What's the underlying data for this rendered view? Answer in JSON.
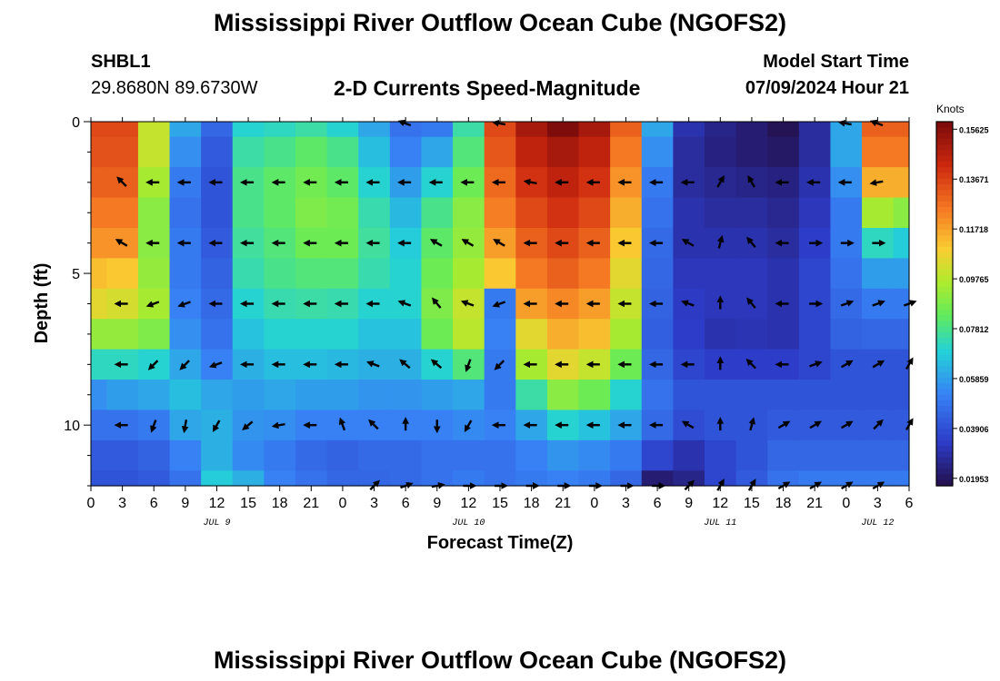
{
  "header": {
    "title": "Mississippi River Outflow Ocean Cube (NGOFS2)",
    "station_id": "SHBL1",
    "coordinates": "29.8680N  89.6730W",
    "subtitle": "2-D Currents Speed-Magnitude",
    "model_start_label": "Model Start Time",
    "model_start_value": "07/09/2024 Hour 21"
  },
  "footer": {
    "repeated_title": "Mississippi River Outflow Ocean Cube (NGOFS2)"
  },
  "colorbar": {
    "unit_label": "Knots",
    "tick_labels": [
      "0.15625",
      "0.13671",
      "0.11718",
      "0.09765",
      "0.07812",
      "0.05859",
      "0.03906",
      "0.01953"
    ],
    "tick_values": [
      0.15625,
      0.13671,
      0.11718,
      0.09765,
      0.07812,
      0.05859,
      0.03906,
      0.01953
    ],
    "min": 0.0166,
    "max": 0.1592
  },
  "chart_data": {
    "type": "heatmap",
    "title": "2-D Currents Speed-Magnitude",
    "xlabel": "Forecast Time(Z)",
    "ylabel": "Depth (ft)",
    "x_start_hour": 0,
    "x_end_hour": 78,
    "x_cell_hours": 3,
    "x_tick_labels": [
      "0",
      "3",
      "6",
      "9",
      "12",
      "15",
      "18",
      "21",
      "0",
      "3",
      "6",
      "9",
      "12",
      "15",
      "18",
      "21",
      "0",
      "3",
      "6",
      "9",
      "12",
      "15",
      "18",
      "21",
      "0",
      "3",
      "6"
    ],
    "x_tick_hours": [
      0,
      3,
      6,
      9,
      12,
      15,
      18,
      21,
      24,
      27,
      30,
      33,
      36,
      39,
      42,
      45,
      48,
      51,
      54,
      57,
      60,
      63,
      66,
      69,
      72,
      75,
      78
    ],
    "date_labels": [
      {
        "text": "JUL 9",
        "hour": 12
      },
      {
        "text": "JUL 10",
        "hour": 36
      },
      {
        "text": "JUL 11",
        "hour": 60
      },
      {
        "text": "JUL 12",
        "hour": 75
      }
    ],
    "y_range": [
      0,
      12
    ],
    "y_tick_labels": [
      "0",
      "5",
      "10"
    ],
    "y_tick_values": [
      0,
      5,
      10
    ],
    "depth_rows_ft": [
      0,
      1,
      2,
      3,
      4,
      5,
      6,
      7,
      8,
      9,
      10,
      11,
      12
    ],
    "speed_knots": [
      [
        0.135,
        0.135,
        0.1,
        0.06,
        0.045,
        0.07,
        0.072,
        0.075,
        0.07,
        0.06,
        0.048,
        0.05,
        0.075,
        0.135,
        0.15,
        0.158,
        0.15,
        0.13,
        0.06,
        0.03,
        0.025,
        0.022,
        0.018,
        0.028,
        0.06,
        0.13,
        0.13
      ],
      [
        0.133,
        0.133,
        0.1,
        0.055,
        0.042,
        0.075,
        0.078,
        0.082,
        0.078,
        0.065,
        0.052,
        0.06,
        0.08,
        0.132,
        0.145,
        0.15,
        0.145,
        0.125,
        0.055,
        0.028,
        0.024,
        0.022,
        0.02,
        0.028,
        0.06,
        0.125,
        0.125
      ],
      [
        0.13,
        0.13,
        0.095,
        0.05,
        0.04,
        0.078,
        0.082,
        0.086,
        0.082,
        0.07,
        0.058,
        0.07,
        0.085,
        0.128,
        0.14,
        0.145,
        0.14,
        0.12,
        0.05,
        0.028,
        0.026,
        0.025,
        0.024,
        0.03,
        0.055,
        0.115,
        0.115
      ],
      [
        0.125,
        0.125,
        0.09,
        0.048,
        0.04,
        0.078,
        0.082,
        0.088,
        0.086,
        0.074,
        0.064,
        0.078,
        0.09,
        0.124,
        0.135,
        0.14,
        0.135,
        0.115,
        0.048,
        0.03,
        0.028,
        0.028,
        0.026,
        0.032,
        0.05,
        0.095,
        0.09
      ],
      [
        0.12,
        0.12,
        0.09,
        0.05,
        0.042,
        0.076,
        0.08,
        0.085,
        0.085,
        0.076,
        0.068,
        0.082,
        0.092,
        0.118,
        0.13,
        0.135,
        0.13,
        0.11,
        0.046,
        0.03,
        0.03,
        0.03,
        0.028,
        0.034,
        0.05,
        0.072,
        0.068
      ],
      [
        0.112,
        0.11,
        0.092,
        0.05,
        0.044,
        0.074,
        0.078,
        0.08,
        0.08,
        0.074,
        0.07,
        0.085,
        0.095,
        0.11,
        0.125,
        0.13,
        0.125,
        0.105,
        0.045,
        0.032,
        0.032,
        0.032,
        0.03,
        0.036,
        0.048,
        0.058,
        0.058
      ],
      [
        0.105,
        0.103,
        0.095,
        0.052,
        0.046,
        0.07,
        0.074,
        0.075,
        0.074,
        0.07,
        0.07,
        0.088,
        0.1,
        0.05,
        0.118,
        0.122,
        0.118,
        0.1,
        0.044,
        0.033,
        0.032,
        0.032,
        0.03,
        0.036,
        0.046,
        0.05,
        0.05
      ],
      [
        0.092,
        0.092,
        0.088,
        0.055,
        0.048,
        0.066,
        0.07,
        0.07,
        0.07,
        0.066,
        0.066,
        0.085,
        0.098,
        0.052,
        0.105,
        0.115,
        0.112,
        0.095,
        0.043,
        0.034,
        0.03,
        0.031,
        0.03,
        0.036,
        0.044,
        0.045,
        0.045
      ],
      [
        0.072,
        0.072,
        0.07,
        0.06,
        0.052,
        0.062,
        0.065,
        0.065,
        0.064,
        0.062,
        0.062,
        0.07,
        0.08,
        0.05,
        0.095,
        0.105,
        0.1,
        0.085,
        0.045,
        0.036,
        0.034,
        0.034,
        0.034,
        0.036,
        0.04,
        0.04,
        0.04
      ],
      [
        0.055,
        0.058,
        0.06,
        0.065,
        0.06,
        0.058,
        0.06,
        0.058,
        0.058,
        0.056,
        0.056,
        0.058,
        0.06,
        0.05,
        0.075,
        0.09,
        0.085,
        0.07,
        0.048,
        0.04,
        0.04,
        0.04,
        0.04,
        0.04,
        0.04,
        0.04,
        0.04
      ],
      [
        0.048,
        0.048,
        0.05,
        0.06,
        0.062,
        0.056,
        0.055,
        0.052,
        0.052,
        0.052,
        0.052,
        0.052,
        0.054,
        0.052,
        0.06,
        0.07,
        0.066,
        0.06,
        0.046,
        0.038,
        0.04,
        0.04,
        0.042,
        0.042,
        0.042,
        0.042,
        0.042
      ],
      [
        0.042,
        0.042,
        0.044,
        0.052,
        0.062,
        0.054,
        0.05,
        0.046,
        0.044,
        0.046,
        0.046,
        0.048,
        0.048,
        0.048,
        0.052,
        0.056,
        0.054,
        0.05,
        0.036,
        0.03,
        0.036,
        0.04,
        0.045,
        0.045,
        0.045,
        0.045,
        0.045
      ],
      [
        0.04,
        0.04,
        0.042,
        0.048,
        0.068,
        0.062,
        0.052,
        0.048,
        0.045,
        0.045,
        0.046,
        0.048,
        0.05,
        0.048,
        0.05,
        0.052,
        0.05,
        0.045,
        0.022,
        0.025,
        0.036,
        0.042,
        0.048,
        0.05,
        0.05,
        0.05,
        0.05
      ]
    ],
    "vectors": [
      {
        "depth": 0,
        "hours": [
          30,
          39,
          72,
          75
        ],
        "angles_deg": [
          160,
          170,
          170,
          160
        ]
      },
      {
        "depth": 2,
        "hours": [
          3,
          6,
          9,
          12,
          15,
          18,
          21,
          24,
          27,
          30,
          33,
          36,
          39,
          42,
          45,
          48,
          51,
          54,
          57,
          60,
          63,
          66,
          69,
          72,
          75
        ],
        "angles_deg": [
          135,
          180,
          180,
          180,
          180,
          180,
          180,
          180,
          180,
          180,
          180,
          180,
          180,
          170,
          180,
          180,
          180,
          180,
          180,
          60,
          120,
          180,
          180,
          180,
          190
        ]
      },
      {
        "depth": 4,
        "hours": [
          3,
          6,
          9,
          12,
          15,
          18,
          21,
          24,
          27,
          30,
          33,
          36,
          39,
          42,
          45,
          48,
          51,
          54,
          57,
          60,
          63,
          66,
          69,
          72,
          75
        ],
        "angles_deg": [
          150,
          180,
          180,
          180,
          180,
          180,
          180,
          180,
          180,
          180,
          150,
          150,
          150,
          180,
          180,
          180,
          180,
          180,
          150,
          75,
          130,
          180,
          0,
          0,
          0
        ]
      },
      {
        "depth": 6,
        "hours": [
          3,
          6,
          9,
          12,
          15,
          18,
          21,
          24,
          27,
          30,
          33,
          36,
          39,
          42,
          45,
          48,
          51,
          54,
          57,
          60,
          63,
          66,
          69,
          72,
          75,
          78
        ],
        "angles_deg": [
          180,
          200,
          200,
          180,
          180,
          180,
          180,
          180,
          180,
          160,
          130,
          160,
          200,
          180,
          180,
          180,
          180,
          180,
          160,
          90,
          130,
          180,
          0,
          20,
          20,
          20
        ]
      },
      {
        "depth": 8,
        "hours": [
          3,
          6,
          9,
          12,
          15,
          18,
          21,
          24,
          27,
          30,
          33,
          36,
          39,
          42,
          45,
          48,
          51,
          54,
          57,
          60,
          63,
          66,
          69,
          72,
          75,
          78
        ],
        "angles_deg": [
          180,
          225,
          225,
          200,
          180,
          180,
          180,
          180,
          160,
          140,
          140,
          250,
          225,
          180,
          180,
          180,
          180,
          180,
          180,
          90,
          135,
          180,
          20,
          30,
          30,
          60
        ]
      },
      {
        "depth": 10,
        "hours": [
          3,
          6,
          9,
          12,
          15,
          18,
          21,
          24,
          27,
          30,
          33,
          36,
          39,
          42,
          45,
          48,
          51,
          54,
          57,
          60,
          63,
          66,
          69,
          72,
          75,
          78
        ],
        "angles_deg": [
          180,
          250,
          260,
          240,
          220,
          190,
          180,
          110,
          135,
          90,
          270,
          240,
          180,
          180,
          180,
          180,
          180,
          180,
          150,
          90,
          75,
          30,
          30,
          30,
          45,
          60
        ]
      },
      {
        "depth": 12,
        "hours": [
          27,
          30,
          33,
          36,
          39,
          42,
          45,
          48,
          51,
          54,
          57,
          60,
          63,
          66,
          69,
          72,
          75
        ],
        "angles_deg": [
          45,
          20,
          10,
          0,
          0,
          0,
          0,
          0,
          0,
          0,
          45,
          60,
          60,
          30,
          30,
          30,
          30
        ]
      }
    ]
  }
}
